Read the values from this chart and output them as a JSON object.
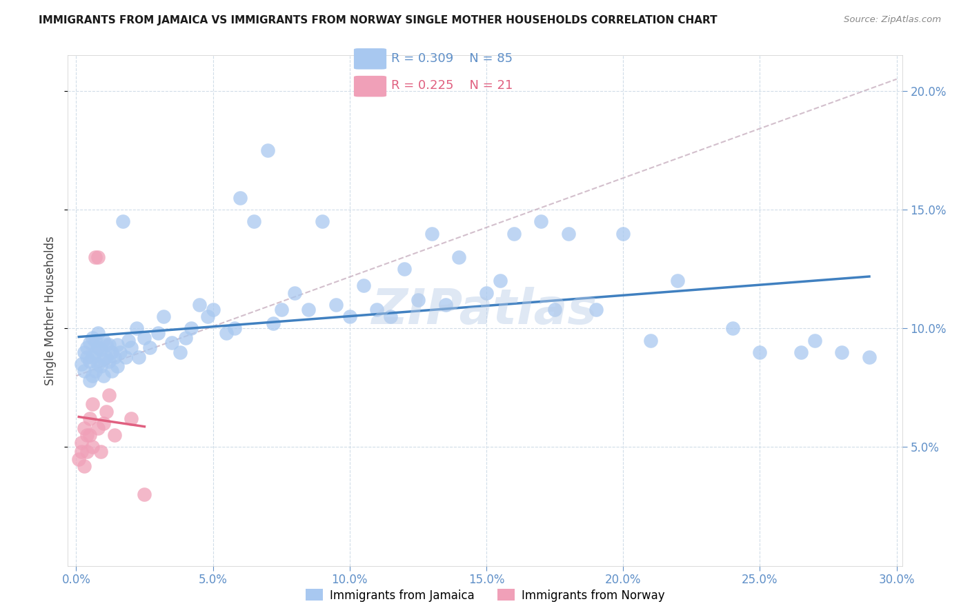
{
  "title": "IMMIGRANTS FROM JAMAICA VS IMMIGRANTS FROM NORWAY SINGLE MOTHER HOUSEHOLDS CORRELATION CHART",
  "source": "Source: ZipAtlas.com",
  "ylabel": "Single Mother Households",
  "xlim": [
    0.0,
    0.3
  ],
  "ylim": [
    0.0,
    0.215
  ],
  "xticks": [
    0.0,
    0.05,
    0.1,
    0.15,
    0.2,
    0.25,
    0.3
  ],
  "yticks": [
    0.05,
    0.1,
    0.15,
    0.2
  ],
  "ytick_labels": [
    "5.0%",
    "10.0%",
    "15.0%",
    "20.0%"
  ],
  "xtick_labels": [
    "0.0%",
    "5.0%",
    "10.0%",
    "15.0%",
    "20.0%",
    "25.0%",
    "30.0%"
  ],
  "legend_blue_r": "R = 0.309",
  "legend_blue_n": "N = 85",
  "legend_pink_r": "R = 0.225",
  "legend_pink_n": "N = 21",
  "blue_color": "#A8C8F0",
  "pink_color": "#F0A0B8",
  "blue_line_color": "#4080C0",
  "pink_line_color": "#E06080",
  "dashed_line_color": "#C8B0C0",
  "watermark": "ZIPatlas",
  "label_jamaica": "Immigrants from Jamaica",
  "label_norway": "Immigrants from Norway",
  "tick_color": "#6090C8",
  "grid_color": "#D0DCE8",
  "jamaica_x": [
    0.002,
    0.003,
    0.003,
    0.004,
    0.004,
    0.005,
    0.005,
    0.005,
    0.006,
    0.006,
    0.006,
    0.007,
    0.007,
    0.007,
    0.008,
    0.008,
    0.008,
    0.009,
    0.009,
    0.01,
    0.01,
    0.01,
    0.011,
    0.011,
    0.012,
    0.012,
    0.013,
    0.013,
    0.014,
    0.015,
    0.015,
    0.016,
    0.017,
    0.018,
    0.019,
    0.02,
    0.022,
    0.023,
    0.025,
    0.027,
    0.03,
    0.032,
    0.035,
    0.038,
    0.04,
    0.042,
    0.045,
    0.048,
    0.05,
    0.055,
    0.058,
    0.06,
    0.065,
    0.07,
    0.072,
    0.075,
    0.08,
    0.085,
    0.09,
    0.095,
    0.1,
    0.105,
    0.11,
    0.115,
    0.12,
    0.125,
    0.13,
    0.135,
    0.14,
    0.15,
    0.155,
    0.16,
    0.17,
    0.175,
    0.18,
    0.19,
    0.2,
    0.21,
    0.22,
    0.24,
    0.25,
    0.265,
    0.27,
    0.28,
    0.29
  ],
  "jamaica_y": [
    0.085,
    0.09,
    0.082,
    0.088,
    0.092,
    0.078,
    0.086,
    0.094,
    0.08,
    0.088,
    0.096,
    0.082,
    0.09,
    0.095,
    0.085,
    0.092,
    0.098,
    0.084,
    0.091,
    0.08,
    0.087,
    0.095,
    0.088,
    0.093,
    0.086,
    0.093,
    0.082,
    0.09,
    0.088,
    0.084,
    0.093,
    0.09,
    0.145,
    0.088,
    0.095,
    0.092,
    0.1,
    0.088,
    0.096,
    0.092,
    0.098,
    0.105,
    0.094,
    0.09,
    0.096,
    0.1,
    0.11,
    0.105,
    0.108,
    0.098,
    0.1,
    0.155,
    0.145,
    0.175,
    0.102,
    0.108,
    0.115,
    0.108,
    0.145,
    0.11,
    0.105,
    0.118,
    0.108,
    0.105,
    0.125,
    0.112,
    0.14,
    0.11,
    0.13,
    0.115,
    0.12,
    0.14,
    0.145,
    0.108,
    0.14,
    0.108,
    0.14,
    0.095,
    0.12,
    0.1,
    0.09,
    0.09,
    0.095,
    0.09,
    0.088
  ],
  "norway_x": [
    0.001,
    0.002,
    0.002,
    0.003,
    0.003,
    0.004,
    0.004,
    0.005,
    0.005,
    0.006,
    0.006,
    0.007,
    0.008,
    0.008,
    0.009,
    0.01,
    0.011,
    0.012,
    0.014,
    0.02,
    0.025
  ],
  "norway_y": [
    0.045,
    0.048,
    0.052,
    0.058,
    0.042,
    0.055,
    0.048,
    0.062,
    0.055,
    0.068,
    0.05,
    0.13,
    0.058,
    0.13,
    0.048,
    0.06,
    0.065,
    0.072,
    0.055,
    0.062,
    0.03
  ]
}
